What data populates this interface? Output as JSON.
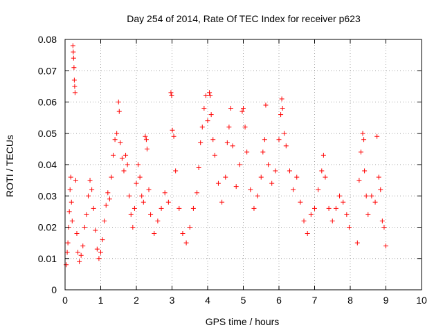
{
  "chart_data": {
    "type": "scatter",
    "title": "Day 254 of 2014, Rate Of TEC Index for receiver p623",
    "xlabel": "GPS time / hours",
    "ylabel": "ROTI / TECUs",
    "xlim": [
      0,
      10
    ],
    "ylim": [
      0,
      0.08
    ],
    "x_ticks": [
      0,
      1,
      2,
      3,
      4,
      5,
      6,
      7,
      8,
      9,
      10
    ],
    "x_tick_labels": [
      "0",
      "1",
      "2",
      "3",
      "4",
      "5",
      "6",
      "7",
      "8",
      "9",
      "10"
    ],
    "y_ticks": [
      0,
      0.01,
      0.02,
      0.03,
      0.04,
      0.05,
      0.06,
      0.07,
      0.08
    ],
    "y_tick_labels": [
      "0",
      "0.01",
      "0.02",
      "0.03",
      "0.04",
      "0.05",
      "0.06",
      "0.07",
      "0.08"
    ],
    "grid": true,
    "marker": "+",
    "series": [
      {
        "name": "ROTI",
        "color": "#ff0000",
        "points": [
          [
            0.03,
            0.008
          ],
          [
            0.06,
            0.012
          ],
          [
            0.08,
            0.015
          ],
          [
            0.1,
            0.02
          ],
          [
            0.12,
            0.025
          ],
          [
            0.14,
            0.032
          ],
          [
            0.16,
            0.036
          ],
          [
            0.18,
            0.028
          ],
          [
            0.2,
            0.022
          ],
          [
            0.22,
            0.078
          ],
          [
            0.23,
            0.076
          ],
          [
            0.24,
            0.074
          ],
          [
            0.25,
            0.071
          ],
          [
            0.26,
            0.067
          ],
          [
            0.27,
            0.065
          ],
          [
            0.28,
            0.063
          ],
          [
            0.3,
            0.035
          ],
          [
            0.33,
            0.018
          ],
          [
            0.36,
            0.012
          ],
          [
            0.4,
            0.009
          ],
          [
            0.45,
            0.011
          ],
          [
            0.5,
            0.014
          ],
          [
            0.55,
            0.02
          ],
          [
            0.6,
            0.024
          ],
          [
            0.65,
            0.03
          ],
          [
            0.7,
            0.035
          ],
          [
            0.75,
            0.032
          ],
          [
            0.8,
            0.026
          ],
          [
            0.85,
            0.019
          ],
          [
            0.9,
            0.013
          ],
          [
            0.95,
            0.01
          ],
          [
            1.0,
            0.012
          ],
          [
            1.05,
            0.016
          ],
          [
            1.1,
            0.022
          ],
          [
            1.15,
            0.027
          ],
          [
            1.2,
            0.031
          ],
          [
            1.25,
            0.029
          ],
          [
            1.3,
            0.036
          ],
          [
            1.35,
            0.043
          ],
          [
            1.4,
            0.048
          ],
          [
            1.45,
            0.05
          ],
          [
            1.5,
            0.06
          ],
          [
            1.52,
            0.057
          ],
          [
            1.55,
            0.047
          ],
          [
            1.6,
            0.042
          ],
          [
            1.65,
            0.038
          ],
          [
            1.7,
            0.043
          ],
          [
            1.75,
            0.04
          ],
          [
            1.8,
            0.03
          ],
          [
            1.85,
            0.024
          ],
          [
            1.9,
            0.02
          ],
          [
            1.95,
            0.026
          ],
          [
            2.0,
            0.034
          ],
          [
            2.05,
            0.04
          ],
          [
            2.1,
            0.036
          ],
          [
            2.15,
            0.03
          ],
          [
            2.2,
            0.028
          ],
          [
            2.25,
            0.049
          ],
          [
            2.28,
            0.048
          ],
          [
            2.3,
            0.045
          ],
          [
            2.35,
            0.032
          ],
          [
            2.4,
            0.024
          ],
          [
            2.5,
            0.018
          ],
          [
            2.6,
            0.022
          ],
          [
            2.7,
            0.026
          ],
          [
            2.8,
            0.031
          ],
          [
            2.9,
            0.028
          ],
          [
            2.97,
            0.063
          ],
          [
            2.99,
            0.062
          ],
          [
            3.01,
            0.051
          ],
          [
            3.05,
            0.049
          ],
          [
            3.1,
            0.038
          ],
          [
            3.2,
            0.026
          ],
          [
            3.3,
            0.018
          ],
          [
            3.4,
            0.015
          ],
          [
            3.5,
            0.02
          ],
          [
            3.6,
            0.026
          ],
          [
            3.7,
            0.031
          ],
          [
            3.75,
            0.039
          ],
          [
            3.8,
            0.047
          ],
          [
            3.85,
            0.052
          ],
          [
            3.9,
            0.058
          ],
          [
            3.95,
            0.062
          ],
          [
            4.0,
            0.054
          ],
          [
            4.05,
            0.063
          ],
          [
            4.07,
            0.062
          ],
          [
            4.1,
            0.056
          ],
          [
            4.15,
            0.048
          ],
          [
            4.2,
            0.043
          ],
          [
            4.3,
            0.034
          ],
          [
            4.4,
            0.028
          ],
          [
            4.5,
            0.036
          ],
          [
            4.55,
            0.047
          ],
          [
            4.6,
            0.052
          ],
          [
            4.65,
            0.058
          ],
          [
            4.7,
            0.046
          ],
          [
            4.8,
            0.033
          ],
          [
            4.9,
            0.04
          ],
          [
            4.97,
            0.057
          ],
          [
            5.0,
            0.058
          ],
          [
            5.05,
            0.052
          ],
          [
            5.1,
            0.044
          ],
          [
            5.2,
            0.032
          ],
          [
            5.3,
            0.026
          ],
          [
            5.4,
            0.03
          ],
          [
            5.5,
            0.036
          ],
          [
            5.55,
            0.044
          ],
          [
            5.6,
            0.048
          ],
          [
            5.63,
            0.059
          ],
          [
            5.7,
            0.04
          ],
          [
            5.8,
            0.034
          ],
          [
            5.9,
            0.038
          ],
          [
            6.0,
            0.048
          ],
          [
            6.05,
            0.056
          ],
          [
            6.08,
            0.061
          ],
          [
            6.1,
            0.058
          ],
          [
            6.15,
            0.05
          ],
          [
            6.2,
            0.046
          ],
          [
            6.3,
            0.038
          ],
          [
            6.4,
            0.032
          ],
          [
            6.5,
            0.036
          ],
          [
            6.6,
            0.028
          ],
          [
            6.7,
            0.022
          ],
          [
            6.8,
            0.018
          ],
          [
            6.9,
            0.024
          ],
          [
            7.0,
            0.026
          ],
          [
            7.1,
            0.032
          ],
          [
            7.2,
            0.038
          ],
          [
            7.25,
            0.043
          ],
          [
            7.3,
            0.036
          ],
          [
            7.4,
            0.026
          ],
          [
            7.5,
            0.022
          ],
          [
            7.6,
            0.026
          ],
          [
            7.7,
            0.03
          ],
          [
            7.8,
            0.028
          ],
          [
            7.9,
            0.024
          ],
          [
            7.97,
            0.02
          ],
          [
            8.2,
            0.015
          ],
          [
            8.25,
            0.035
          ],
          [
            8.3,
            0.044
          ],
          [
            8.35,
            0.05
          ],
          [
            8.38,
            0.048
          ],
          [
            8.4,
            0.038
          ],
          [
            8.45,
            0.03
          ],
          [
            8.5,
            0.024
          ],
          [
            8.6,
            0.03
          ],
          [
            8.7,
            0.028
          ],
          [
            8.75,
            0.049
          ],
          [
            8.8,
            0.036
          ],
          [
            8.85,
            0.032
          ],
          [
            8.9,
            0.022
          ],
          [
            8.95,
            0.02
          ],
          [
            9.0,
            0.014
          ]
        ]
      }
    ]
  }
}
